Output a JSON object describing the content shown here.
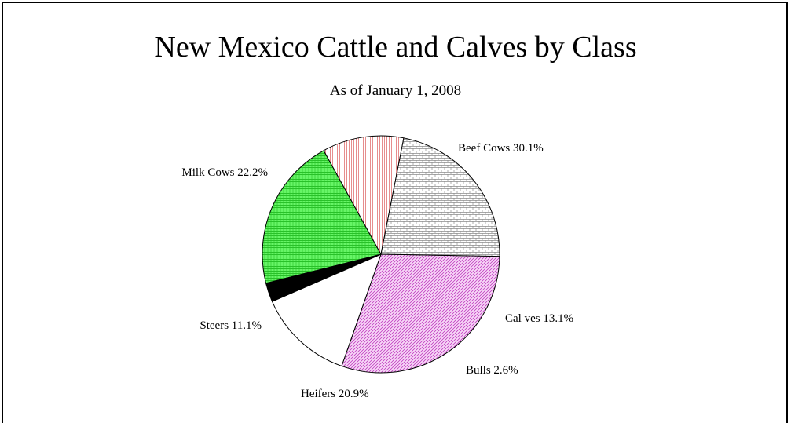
{
  "chart_data": {
    "type": "pie",
    "title": "New Mexico Cattle and Calves by Class",
    "subtitle": "As of January 1, 2008",
    "slices": [
      {
        "label": "Beef Cows",
        "value": 30.1,
        "display": "Beef Cows 30.1%",
        "color": "#f2b8f2",
        "pattern": "diag-magenta"
      },
      {
        "label": "Calves",
        "value": 13.1,
        "display": "Cal ves 13.1%",
        "color": "#ffffff",
        "pattern": "solid-white"
      },
      {
        "label": "Bulls",
        "value": 2.6,
        "display": "Bulls 2.6%",
        "color": "#000000",
        "pattern": "solid-black"
      },
      {
        "label": "Heifers",
        "value": 20.9,
        "display": "Heifers 20.9%",
        "color": "#44ee44",
        "pattern": "hlines-green"
      },
      {
        "label": "Steers",
        "value": 11.1,
        "display": "Steers 11.1%",
        "color": "#e88080",
        "pattern": "vlines-pink"
      },
      {
        "label": "Milk Cows",
        "value": 22.2,
        "display": "Milk Cows 22.2%",
        "color": "#909090",
        "pattern": "brick-gray"
      }
    ]
  }
}
